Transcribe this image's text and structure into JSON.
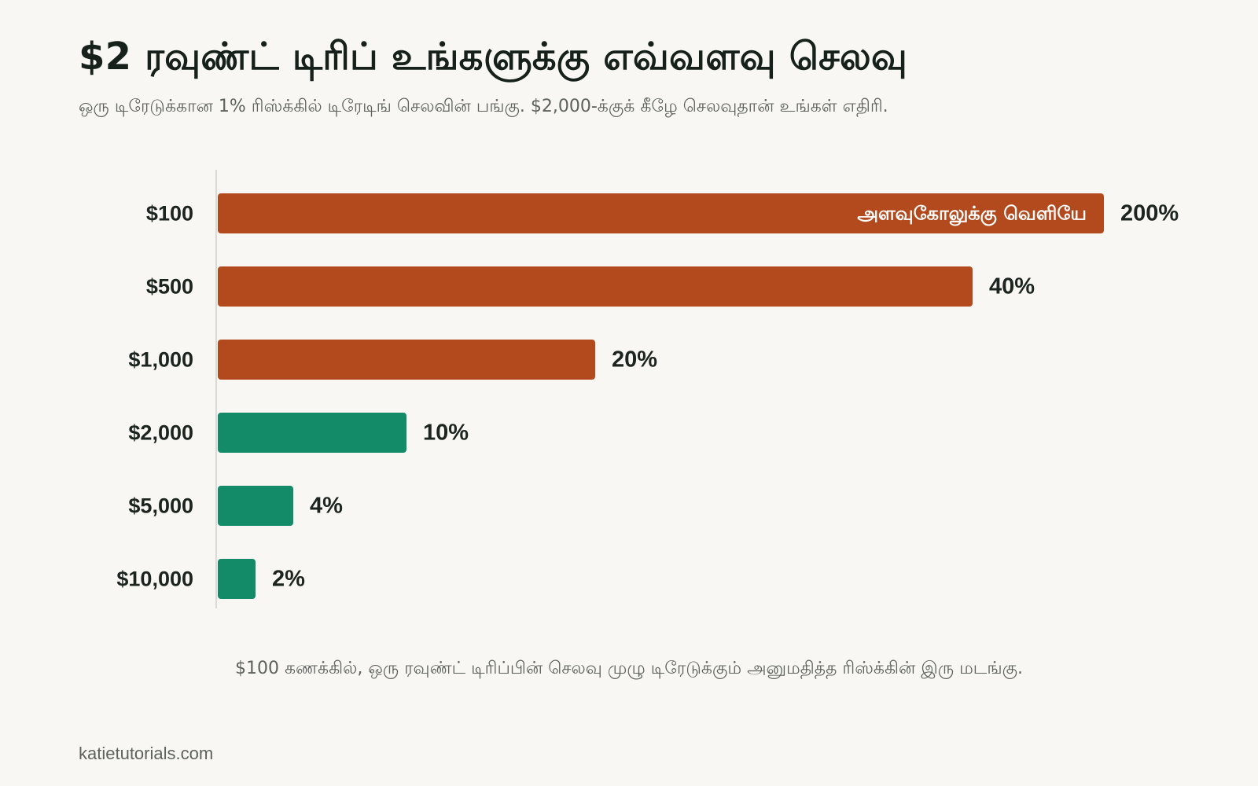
{
  "title": "$2 ரவுண்ட் டிரிப் உங்களுக்கு எவ்வளவு செலவு",
  "subtitle": "ஒரு டிரேடுக்கான 1% ரிஸ்க்கில் டிரேடிங் செலவின் பங்கு. $2,000-க்குக் கீழே செலவுதான் உங்கள் எதிரி.",
  "footnote": "$100 கணக்கில், ஒரு ரவுண்ட் டிரிப்பின் செலவு முழு டிரேடுக்கும் அனுமதித்த ரிஸ்க்கின் இரு மடங்கு.",
  "source": "katietutorials.com",
  "colors": {
    "high_cost": "#b34a1e",
    "low_cost": "#138a68",
    "axis": "#cfcfcb",
    "label": "#1c2420",
    "bar_text": "#ffffff"
  },
  "chart_data": {
    "type": "bar",
    "orientation": "horizontal",
    "categories": [
      "$100",
      "$500",
      "$1,000",
      "$2,000",
      "$5,000",
      "$10,000"
    ],
    "values": [
      200,
      40,
      20,
      10,
      4,
      2
    ],
    "value_labels": [
      "200%",
      "40%",
      "20%",
      "10%",
      "4%",
      "2%"
    ],
    "bar_colors": [
      "high_cost",
      "high_cost",
      "high_cost",
      "low_cost",
      "low_cost",
      "low_cost"
    ],
    "axis_max": 48,
    "clipped": [
      0
    ],
    "clip_label": "அளவுகோலுக்கு வெளியே"
  }
}
